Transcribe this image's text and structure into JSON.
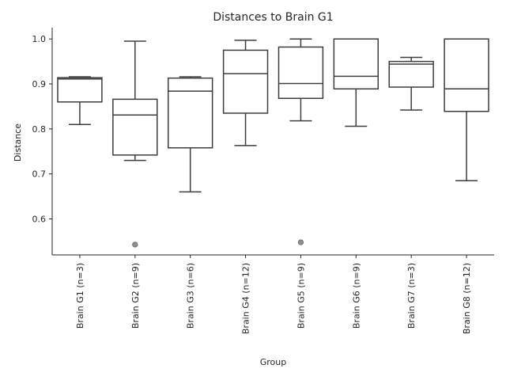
{
  "chart_data": {
    "type": "box",
    "title": "Distances to Brain G1",
    "xlabel": "Group",
    "ylabel": "Distance",
    "ylim": [
      0.52,
      1.025
    ],
    "yticks": [
      0.6,
      0.7,
      0.8,
      0.9,
      1.0
    ],
    "ytick_labels": [
      "0.6",
      "0.7",
      "0.8",
      "0.9",
      "1.0"
    ],
    "grid": false,
    "categories": [
      "Brain G1 (n=3)",
      "Brain G2 (n=9)",
      "Brain G3 (n=6)",
      "Brain G4 (n=12)",
      "Brain G5 (n=9)",
      "Brain G6 (n=9)",
      "Brain G7 (n=3)",
      "Brain G8 (n=12)"
    ],
    "boxes": [
      {
        "whisker_low": 0.81,
        "q1": 0.86,
        "median": 0.911,
        "q3": 0.914,
        "whisker_high": 0.916,
        "outliers": []
      },
      {
        "whisker_low": 0.73,
        "q1": 0.742,
        "median": 0.831,
        "q3": 0.866,
        "whisker_high": 0.995,
        "outliers": [
          0.543
        ]
      },
      {
        "whisker_low": 0.66,
        "q1": 0.758,
        "median": 0.884,
        "q3": 0.913,
        "whisker_high": 0.916,
        "outliers": []
      },
      {
        "whisker_low": 0.763,
        "q1": 0.835,
        "median": 0.923,
        "q3": 0.975,
        "whisker_high": 0.997,
        "outliers": []
      },
      {
        "whisker_low": 0.818,
        "q1": 0.868,
        "median": 0.901,
        "q3": 0.982,
        "whisker_high": 1.0,
        "outliers": [
          0.548
        ]
      },
      {
        "whisker_low": 0.806,
        "q1": 0.889,
        "median": 0.917,
        "q3": 1.0,
        "whisker_high": 1.0,
        "outliers": []
      },
      {
        "whisker_low": 0.842,
        "q1": 0.893,
        "median": 0.944,
        "q3": 0.95,
        "whisker_high": 0.959,
        "outliers": []
      },
      {
        "whisker_low": 0.685,
        "q1": 0.839,
        "median": 0.889,
        "q3": 1.0,
        "whisker_high": 1.0,
        "outliers": []
      }
    ]
  }
}
